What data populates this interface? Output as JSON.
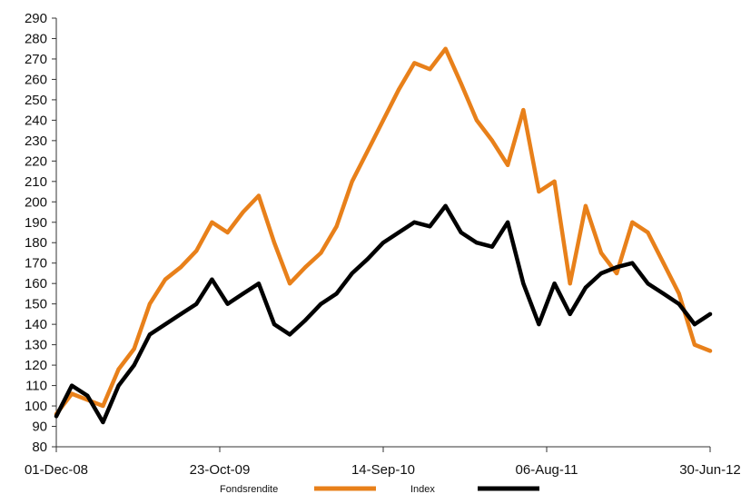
{
  "chart_data": {
    "type": "line",
    "title": "",
    "xlabel": "",
    "ylabel": "",
    "ylim": [
      80,
      290
    ],
    "yticks": [
      80,
      90,
      100,
      110,
      120,
      130,
      140,
      150,
      160,
      170,
      180,
      190,
      200,
      210,
      220,
      230,
      240,
      250,
      260,
      270,
      280,
      290
    ],
    "xticks": [
      "01-Dec-08",
      "23-Oct-09",
      "14-Sep-10",
      "06-Aug-11",
      "30-Jun-12"
    ],
    "grid": false,
    "legend_position": "bottom",
    "x": [
      "2008-12",
      "2009-01",
      "2009-02",
      "2009-03",
      "2009-04",
      "2009-05",
      "2009-06",
      "2009-07",
      "2009-08",
      "2009-09",
      "2009-10",
      "2009-11",
      "2009-12",
      "2010-01",
      "2010-02",
      "2010-03",
      "2010-04",
      "2010-05",
      "2010-06",
      "2010-07",
      "2010-08",
      "2010-09",
      "2010-10",
      "2010-11",
      "2010-12",
      "2011-01",
      "2011-02",
      "2011-03",
      "2011-04",
      "2011-05",
      "2011-06",
      "2011-07",
      "2011-08",
      "2011-09",
      "2011-10",
      "2011-11",
      "2011-12",
      "2012-01",
      "2012-02",
      "2012-03",
      "2012-04",
      "2012-05",
      "2012-06"
    ],
    "series": [
      {
        "name": "Fondsrendite",
        "color": "#e8801a",
        "values": [
          96,
          106,
          103,
          100,
          118,
          128,
          150,
          162,
          168,
          176,
          190,
          185,
          195,
          203,
          180,
          160,
          168,
          175,
          188,
          210,
          225,
          240,
          255,
          268,
          265,
          275,
          258,
          240,
          230,
          218,
          245,
          205,
          210,
          160,
          198,
          175,
          165,
          190,
          185,
          170,
          155,
          130,
          127
        ]
      },
      {
        "name": "Index",
        "color": "#000000",
        "values": [
          95,
          110,
          105,
          92,
          110,
          120,
          135,
          140,
          145,
          150,
          162,
          150,
          155,
          160,
          140,
          135,
          142,
          150,
          155,
          165,
          172,
          180,
          185,
          190,
          188,
          198,
          185,
          180,
          178,
          190,
          160,
          140,
          160,
          145,
          158,
          165,
          168,
          170,
          160,
          155,
          150,
          140,
          145
        ]
      }
    ]
  }
}
